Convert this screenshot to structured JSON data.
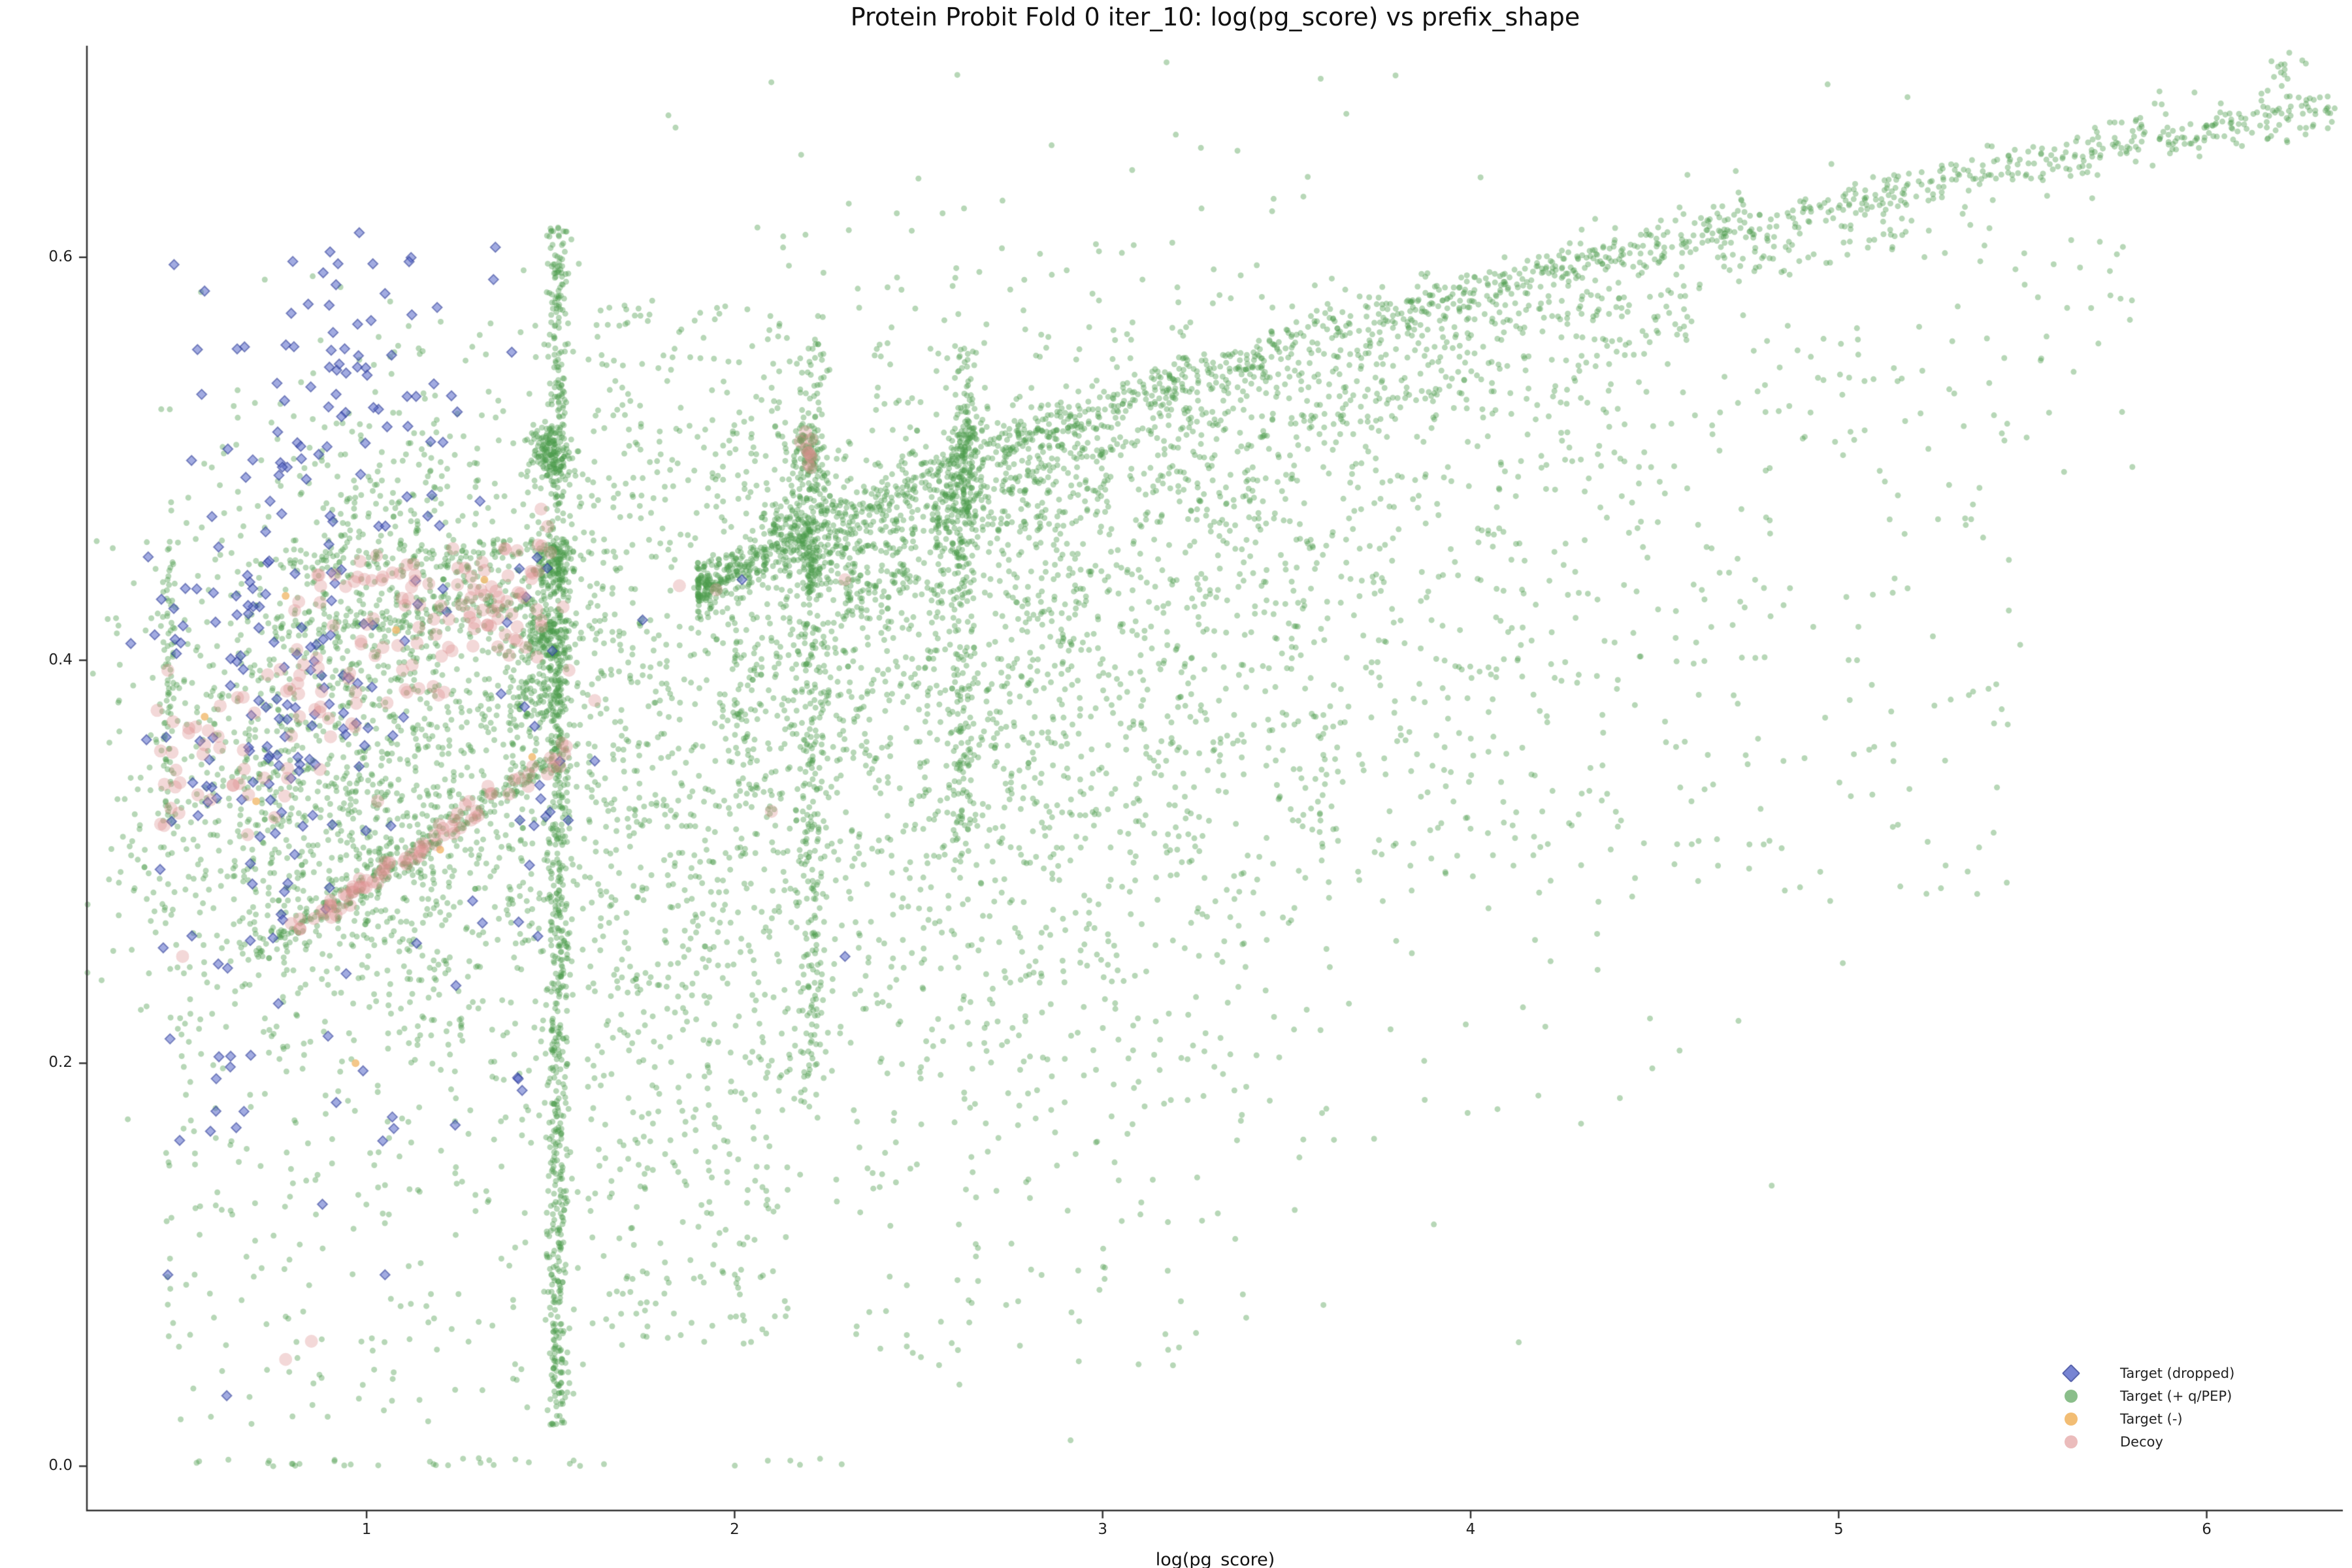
{
  "chart_data": {
    "type": "scatter",
    "title": "Protein Probit Fold 0 iter_10: log(pg_score) vs prefix_shape",
    "xlabel": "log(pg_score)",
    "ylabel": "",
    "xlim": [
      0.24,
      6.37
    ],
    "ylim": [
      -0.022,
      0.705
    ],
    "x_ticks": [
      1,
      2,
      3,
      4,
      5,
      6
    ],
    "x_tick_labels": [
      "1",
      "2",
      "3",
      "4",
      "5",
      "6"
    ],
    "y_ticks": [
      0.0,
      0.2,
      0.4,
      0.6
    ],
    "y_tick_labels": [
      "0.0",
      "0.2",
      "0.4",
      "0.6"
    ],
    "grid": false,
    "legend_position": "lower right",
    "seed": 7,
    "draw_order": [
      1,
      0,
      2,
      3
    ],
    "series": [
      {
        "name": "Target (dropped)",
        "marker": "diamond",
        "color": "#5666c9",
        "edge": "#2e3d96",
        "alpha": 0.55,
        "size": 7.5,
        "clusters": [
          {
            "t": "g",
            "n": 120,
            "cx": 0.75,
            "cy": 0.385,
            "sx": 0.18,
            "sy": 0.045
          },
          {
            "t": "g",
            "n": 70,
            "cx": 0.9,
            "cy": 0.505,
            "sx": 0.22,
            "sy": 0.045
          },
          {
            "t": "u",
            "n": 35,
            "x0": 0.42,
            "x1": 1.5,
            "y0": 0.16,
            "y1": 0.3
          },
          {
            "t": "u",
            "n": 22,
            "x0": 0.45,
            "x1": 1.4,
            "y0": 0.525,
            "y1": 0.607
          },
          {
            "t": "u",
            "n": 20,
            "x0": 1.3,
            "x1": 1.55,
            "y0": 0.25,
            "y1": 0.46
          },
          {
            "t": "p",
            "pts": [
              [
                2.3,
                0.253
              ],
              [
                1.75,
                0.42
              ],
              [
                1.62,
                0.35
              ],
              [
                0.62,
                0.035
              ],
              [
                0.46,
                0.095
              ],
              [
                1.05,
                0.095
              ],
              [
                0.88,
                0.13
              ],
              [
                1.35,
                0.605
              ],
              [
                1.05,
                0.582
              ],
              [
                0.47,
                0.32
              ],
              [
                2.02,
                0.44
              ]
            ]
          }
        ]
      },
      {
        "name": "Target (+ q/PEP)",
        "marker": "circle",
        "color": "#4c9b4c",
        "edge": "#4c9b4c",
        "alpha": 0.4,
        "size": 4.5,
        "clusters": [
          {
            "t": "g",
            "n": 1100,
            "cx": 1.0,
            "cy": 0.36,
            "sx": 0.32,
            "sy": 0.07
          },
          {
            "t": "g",
            "n": 450,
            "cx": 1.15,
            "cy": 0.45,
            "sx": 0.28,
            "sy": 0.05
          },
          {
            "t": "g",
            "n": 400,
            "cx": 0.95,
            "cy": 0.3,
            "sx": 0.35,
            "sy": 0.04
          },
          {
            "t": "v",
            "n": 850,
            "x": 1.52,
            "sx": 0.015,
            "y0": 0.02,
            "y1": 0.615
          },
          {
            "t": "g",
            "n": 140,
            "cx": 1.5,
            "cy": 0.503,
            "sx": 0.025,
            "sy": 0.007
          },
          {
            "t": "g",
            "n": 120,
            "cx": 1.51,
            "cy": 0.447,
            "sx": 0.03,
            "sy": 0.007
          },
          {
            "t": "g",
            "n": 140,
            "cx": 1.49,
            "cy": 0.412,
            "sx": 0.04,
            "sy": 0.008
          },
          {
            "t": "g",
            "n": 110,
            "cx": 1.44,
            "cy": 0.378,
            "sx": 0.06,
            "sy": 0.012
          },
          {
            "t": "v",
            "n": 90,
            "x": 0.462,
            "sx": 0.01,
            "y0": 0.3,
            "y1": 0.46
          },
          {
            "t": "u",
            "n": 320,
            "x0": 0.45,
            "x1": 1.6,
            "y0": 0.02,
            "y1": 0.3
          },
          {
            "t": "u",
            "n": 30,
            "x0": 0.5,
            "x1": 1.65,
            "y0": 0.0,
            "y1": 0.004
          },
          {
            "t": "u",
            "n": 6,
            "x0": 1.95,
            "x1": 2.35,
            "y0": 0.0,
            "y1": 0.004
          },
          {
            "t": "d",
            "n": 230,
            "x0": 0.7,
            "x1": 1.55,
            "m": 0.12,
            "c": 0.17,
            "sy": 0.004
          },
          {
            "t": "d",
            "n": 120,
            "x0": 0.75,
            "x1": 1.5,
            "m": 0.02,
            "c": 0.4,
            "sy": 0.004
          },
          {
            "t": "d",
            "n": 100,
            "x0": 0.8,
            "x1": 1.5,
            "m": 0.015,
            "c": 0.435,
            "sy": 0.004
          },
          {
            "t": "u",
            "n": 700,
            "x0": 1.6,
            "x1": 2.15,
            "y0": 0.06,
            "y1": 0.58
          },
          {
            "t": "v",
            "n": 330,
            "x": 2.21,
            "sx": 0.022,
            "y0": 0.18,
            "y1": 0.56
          },
          {
            "t": "g",
            "n": 110,
            "cx": 2.2,
            "cy": 0.502,
            "sx": 0.025,
            "sy": 0.009
          },
          {
            "t": "g",
            "n": 140,
            "cx": 2.17,
            "cy": 0.462,
            "sx": 0.05,
            "sy": 0.013
          },
          {
            "t": "g",
            "n": 1400,
            "cx": 2.6,
            "cy": 0.37,
            "sx": 0.5,
            "sy": 0.11
          },
          {
            "t": "g",
            "n": 800,
            "cx": 3.4,
            "cy": 0.42,
            "sx": 0.65,
            "sy": 0.1
          },
          {
            "t": "v",
            "n": 200,
            "x": 2.62,
            "sx": 0.018,
            "y0": 0.3,
            "y1": 0.555
          },
          {
            "t": "g",
            "n": 90,
            "cx": 2.62,
            "cy": 0.505,
            "sx": 0.025,
            "sy": 0.01
          },
          {
            "t": "g",
            "n": 70,
            "cx": 2.6,
            "cy": 0.472,
            "sx": 0.04,
            "sy": 0.01
          },
          {
            "t": "c",
            "n": 1500,
            "x0": 1.9,
            "x1": 6.35,
            "a": 0.305,
            "b": 0.2,
            "sy": 0.006,
            "p": 1.6
          },
          {
            "t": "c",
            "n": 450,
            "x0": 2.2,
            "x1": 5.2,
            "a": 0.285,
            "b": 0.2,
            "sy": 0.006,
            "p": 1.6
          },
          {
            "t": "c",
            "n": 260,
            "x0": 2.3,
            "x1": 4.6,
            "a": 0.263,
            "b": 0.2,
            "sy": 0.007,
            "p": 1.4
          },
          {
            "t": "c",
            "n": 550,
            "x0": 2.0,
            "x1": 5.8,
            "a": 0.24,
            "b": 0.2,
            "sy": 0.04,
            "p": 1.8
          },
          {
            "t": "u",
            "n": 220,
            "x0": 3.5,
            "x1": 5.5,
            "y0": 0.28,
            "y1": 0.54
          },
          {
            "t": "u",
            "n": 120,
            "x0": 2.3,
            "x1": 3.4,
            "y0": 0.05,
            "y1": 0.28
          },
          {
            "t": "g",
            "n": 12,
            "cx": 6.22,
            "cy": 0.693,
            "sx": 0.035,
            "sy": 0.003
          },
          {
            "t": "g",
            "n": 5,
            "cx": 5.85,
            "cy": 0.676,
            "sx": 0.02,
            "sy": 0.003
          },
          {
            "t": "p",
            "pts": [
              [
                5.3,
                0.487
              ],
              [
                5.36,
                0.47
              ],
              [
                5.27,
                0.47
              ],
              [
                5.15,
                0.545
              ],
              [
                5.05,
                0.4
              ],
              [
                4.85,
                0.35
              ],
              [
                4.6,
                0.33
              ],
              [
                4.95,
                0.295
              ],
              [
                5.45,
                0.55
              ],
              [
                4.3,
                0.17
              ],
              [
                3.9,
                0.12
              ],
              [
                3.6,
                0.08
              ]
            ]
          }
        ]
      },
      {
        "name": "Target (-)",
        "marker": "circle",
        "color": "#f2bd74",
        "edge": "#f2bd74",
        "alpha": 0.85,
        "size": 6,
        "clusters": [
          {
            "t": "p",
            "pts": [
              [
                0.78,
                0.432
              ],
              [
                1.08,
                0.415
              ],
              [
                0.97,
                0.2
              ],
              [
                1.32,
                0.44
              ],
              [
                0.7,
                0.33
              ],
              [
                1.45,
                0.352
              ],
              [
                0.56,
                0.372
              ],
              [
                1.2,
                0.306
              ]
            ]
          }
        ]
      },
      {
        "name": "Decoy",
        "marker": "circle",
        "color": "#dd9090",
        "edge": "#dd9090",
        "alpha": 0.35,
        "size": 10,
        "clusters": [
          {
            "t": "d",
            "n": 120,
            "x0": 0.42,
            "x1": 1.5,
            "m": 0.09,
            "c": 0.3,
            "sy": 0.02
          },
          {
            "t": "d",
            "n": 80,
            "x0": 0.75,
            "x1": 1.55,
            "m": 0.12,
            "c": 0.17,
            "sy": 0.003
          },
          {
            "t": "d",
            "n": 30,
            "x0": 0.8,
            "x1": 1.5,
            "m": 0.02,
            "c": 0.42,
            "sy": 0.006
          },
          {
            "t": "g",
            "n": 22,
            "cx": 1.35,
            "cy": 0.432,
            "sx": 0.1,
            "sy": 0.01
          },
          {
            "t": "g",
            "n": 10,
            "cx": 2.2,
            "cy": 0.503,
            "sx": 0.015,
            "sy": 0.006
          },
          {
            "t": "p",
            "pts": [
              [
                0.45,
                0.318
              ],
              [
                0.5,
                0.253
              ],
              [
                0.85,
                0.062
              ],
              [
                1.03,
                0.33
              ],
              [
                1.85,
                0.437
              ],
              [
                2.1,
                0.325
              ],
              [
                1.95,
                0.435
              ],
              [
                0.46,
                0.395
              ],
              [
                0.44,
                0.355
              ],
              [
                0.75,
                0.322
              ],
              [
                1.55,
                0.395
              ],
              [
                1.62,
                0.38
              ],
              [
                2.3,
                0.44
              ],
              [
                0.78,
                0.053
              ]
            ]
          }
        ]
      }
    ]
  }
}
